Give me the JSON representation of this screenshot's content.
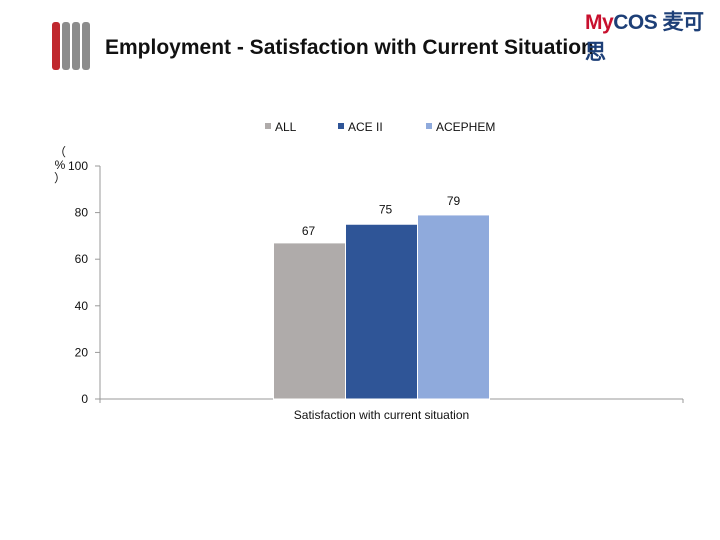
{
  "slide": {
    "title": "Employment - Satisfaction with Current Situation"
  },
  "logo": {
    "brand_prefix": "My",
    "brand_suffix": "COS",
    "brand_cn": "麦可思",
    "tagline": "",
    "brand_color": "#1d3f77",
    "accent_color": "#c8102e"
  },
  "decoration": {
    "bar_colors": [
      "#c0282e",
      "#8c8c8c",
      "#8c8c8c",
      "#8c8c8c"
    ]
  },
  "chart_data": {
    "type": "bar",
    "title": "",
    "xlabel": "",
    "ylabel": "（%）",
    "categories": [
      "Satisfaction with current situation"
    ],
    "series": [
      {
        "name": "ALL",
        "values": [
          67
        ],
        "color": "#afabaa"
      },
      {
        "name": "ACE II",
        "values": [
          75
        ],
        "color": "#2f5597"
      },
      {
        "name": "ACEPHEM",
        "values": [
          79
        ],
        "color": "#8faadc"
      }
    ],
    "ylim": [
      0,
      100
    ],
    "yticks": [
      0,
      20,
      40,
      60,
      80,
      100
    ],
    "data_labels": true,
    "grid": false,
    "legend_position": "top"
  }
}
